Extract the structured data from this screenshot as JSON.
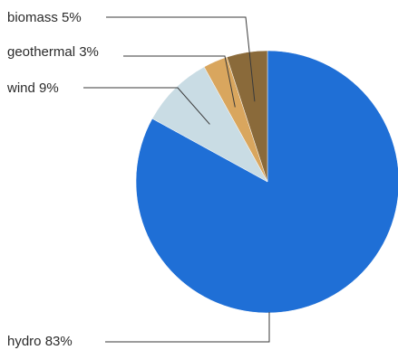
{
  "chart_data": {
    "type": "pie",
    "slices": [
      {
        "label": "hydro 83%",
        "category": "hydro",
        "value": 83,
        "color": "#1f6fd6"
      },
      {
        "label": "wind 9%",
        "category": "wind",
        "value": 9,
        "color": "#c9dce4"
      },
      {
        "label": "geothermal 3%",
        "category": "geothermal",
        "value": 3,
        "color": "#d9a65e"
      },
      {
        "label": "biomass 5%",
        "category": "biomass",
        "value": 5,
        "color": "#8a6a3a"
      }
    ],
    "start_angle_deg": 0,
    "direction": "counterclockwise"
  }
}
